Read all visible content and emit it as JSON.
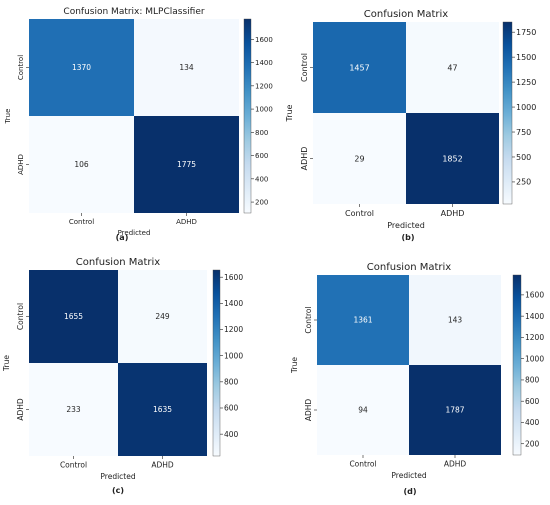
{
  "chart_data": [
    {
      "type": "heatmap",
      "title": "Confusion Matrix: MLPClassifier",
      "xlabel": "Predicted",
      "ylabel": "True",
      "x_categories": [
        "Control",
        "ADHD"
      ],
      "y_categories": [
        "Control",
        "ADHD"
      ],
      "values": [
        [
          1370,
          134
        ],
        [
          106,
          1775
        ]
      ],
      "colorbar_range": [
        106,
        1775
      ],
      "colorbar_ticks": [
        200,
        400,
        600,
        800,
        1000,
        1200,
        1400,
        1600
      ],
      "colormap": "Blues",
      "caption": "(a)"
    },
    {
      "type": "heatmap",
      "title": "Confusion Matrix",
      "xlabel": "Predicted",
      "ylabel": "True",
      "x_categories": [
        "Control",
        "ADHD"
      ],
      "y_categories": [
        "Control",
        "ADHD"
      ],
      "values": [
        [
          1457,
          47
        ],
        [
          29,
          1852
        ]
      ],
      "colorbar_range": [
        29,
        1852
      ],
      "colorbar_ticks": [
        250,
        500,
        750,
        1000,
        1250,
        1500,
        1750
      ],
      "colormap": "Blues",
      "caption": "(b)"
    },
    {
      "type": "heatmap",
      "title": "Confusion Matrix",
      "xlabel": "Predicted",
      "ylabel": "True",
      "x_categories": [
        "Control",
        "ADHD"
      ],
      "y_categories": [
        "Control",
        "ADHD"
      ],
      "values": [
        [
          1655,
          249
        ],
        [
          233,
          1635
        ]
      ],
      "colorbar_range": [
        233,
        1655
      ],
      "colorbar_ticks": [
        400,
        600,
        800,
        1000,
        1200,
        1400,
        1600
      ],
      "colormap": "Blues",
      "caption": "(c)"
    },
    {
      "type": "heatmap",
      "title": "Confusion Matrix",
      "xlabel": "Predicted",
      "ylabel": "True",
      "x_categories": [
        "Control",
        "ADHD"
      ],
      "y_categories": [
        "Control",
        "ADHD"
      ],
      "values": [
        [
          1361,
          143
        ],
        [
          94,
          1787
        ]
      ],
      "colorbar_range": [
        94,
        1787
      ],
      "colorbar_ticks": [
        200,
        400,
        600,
        800,
        1000,
        1200,
        1400,
        1600
      ],
      "colormap": "Blues",
      "caption": "(d)"
    }
  ]
}
